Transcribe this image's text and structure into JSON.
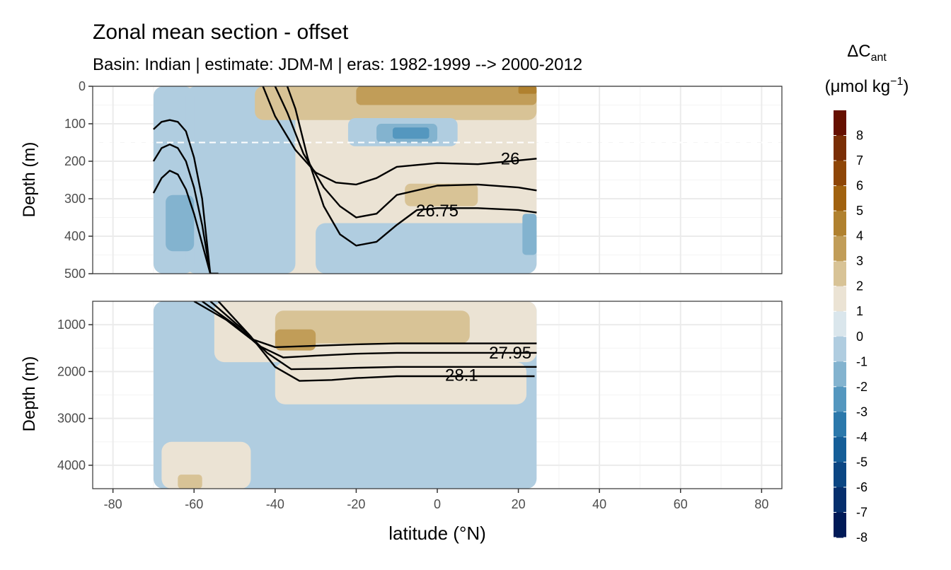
{
  "chart_data": {
    "type": "heatmap",
    "title": "Zonal mean section - offset",
    "subtitle": "Basin: Indian | estimate: JDM-M | eras: 1982-1999 --> 2000-2012",
    "xlabel": "latitude (°N)",
    "ylabel": "Depth (m)",
    "xlim": [
      -85,
      85
    ],
    "x_ticks": [
      "-80",
      "-60",
      "-40",
      "-20",
      "0",
      "20",
      "40",
      "60",
      "80"
    ],
    "x_tick_values": [
      -80,
      -60,
      -40,
      -20,
      0,
      20,
      40,
      60,
      80
    ],
    "data_extent_lat": [
      -70,
      24.5
    ],
    "grid": true,
    "legend_position": "right",
    "panels": [
      {
        "name": "upper",
        "ylim": [
          0,
          500
        ],
        "y_ticks": [
          "0",
          "100",
          "200",
          "300",
          "400",
          "500"
        ],
        "y_tick_values": [
          0,
          100,
          200,
          300,
          400,
          500
        ],
        "reference_depth": 150,
        "contour_labels": [
          {
            "text": "26",
            "lat": 18,
            "depth": 193
          },
          {
            "text": "26.75",
            "lat": 0,
            "depth": 332
          }
        ],
        "field": [
          {
            "class": 1,
            "lat": [
              -70,
              24.5
            ],
            "depth": [
              0,
              500
            ]
          },
          {
            "class": -1,
            "lat": [
              -70,
              -60
            ],
            "depth": [
              0,
              500
            ]
          },
          {
            "class": -1,
            "lat": [
              -62,
              -40
            ],
            "depth": [
              0,
              500
            ]
          },
          {
            "class": -1,
            "lat": [
              -30,
              24.5
            ],
            "depth": [
              365,
              500
            ]
          },
          {
            "class": -1,
            "lat": [
              -60,
              -35
            ],
            "depth": [
              0,
              500
            ]
          },
          {
            "class": 2,
            "lat": [
              -45,
              24.5
            ],
            "depth": [
              0,
              90
            ]
          },
          {
            "class": 3,
            "lat": [
              -20,
              24.5
            ],
            "depth": [
              0,
              50
            ]
          },
          {
            "class": 4,
            "lat": [
              20,
              24.5
            ],
            "depth": [
              0,
              20
            ]
          },
          {
            "class": -1,
            "lat": [
              -22,
              5
            ],
            "depth": [
              85,
              160
            ]
          },
          {
            "class": -2,
            "lat": [
              -15,
              0
            ],
            "depth": [
              100,
              150
            ]
          },
          {
            "class": -3,
            "lat": [
              -11,
              -2
            ],
            "depth": [
              110,
              140
            ]
          },
          {
            "class": 2,
            "lat": [
              -8,
              10
            ],
            "depth": [
              260,
              320
            ]
          },
          {
            "class": -2,
            "lat": [
              -67,
              -60
            ],
            "depth": [
              290,
              440
            ]
          },
          {
            "class": -2,
            "lat": [
              21,
              24.5
            ],
            "depth": [
              340,
              450
            ]
          }
        ],
        "contours": [
          {
            "name": "26",
            "lat": [
              -70,
              -68,
              -66,
              -64,
              -62,
              -60,
              -58,
              -56
            ],
            "depth": [
              115,
              95,
              90,
              95,
              120,
              190,
              300,
              500
            ],
            "lat2": [
              -43,
              -40,
              -35,
              -30,
              -25,
              -20,
              -15,
              -10,
              0,
              10,
              18,
              24.5
            ],
            "depth2": [
              0,
              80,
              170,
              230,
              257,
              262,
              245,
              215,
              205,
              208,
              200,
              193
            ]
          },
          {
            "name": "26.25",
            "lat": [
              -70,
              -68,
              -66,
              -64,
              -62,
              -60,
              -58,
              -56,
              -54
            ],
            "depth": [
              200,
              165,
              155,
              165,
              200,
              270,
              370,
              500,
              500
            ],
            "lat2": [
              -40,
              -37,
              -33,
              -28,
              -24,
              -20,
              -15,
              -10,
              0,
              10,
              20,
              24.5
            ],
            "depth2": [
              0,
              70,
              180,
              270,
              320,
              350,
              340,
              290,
              265,
              262,
              270,
              278
            ]
          },
          {
            "name": "26.75",
            "lat": [
              -70,
              -68,
              -66,
              -64,
              -62,
              -60,
              -58,
              -56,
              -54
            ],
            "depth": [
              285,
              245,
              225,
              235,
              275,
              340,
              420,
              500,
              500
            ],
            "lat2": [
              -37,
              -35,
              -32,
              -28,
              -24,
              -20,
              -15,
              -10,
              -5,
              0,
              10,
              20,
              24.5
            ],
            "depth2": [
              0,
              60,
              190,
              320,
              395,
              425,
              415,
              370,
              330,
              325,
              325,
              330,
              337
            ]
          }
        ]
      },
      {
        "name": "lower",
        "ylim": [
          500,
          4500
        ],
        "y_ticks": [
          "1000",
          "2000",
          "3000",
          "4000"
        ],
        "y_tick_values": [
          1000,
          2000,
          3000,
          4000
        ],
        "contour_labels": [
          {
            "text": "27.95",
            "lat": 18,
            "depth": 1600
          },
          {
            "text": "28.1",
            "lat": 6,
            "depth": 2080
          }
        ],
        "field": [
          {
            "class": -1,
            "lat": [
              -70,
              24.5
            ],
            "depth": [
              500,
              4500
            ]
          },
          {
            "class": 1,
            "lat": [
              -55,
              24.5
            ],
            "depth": [
              500,
              1800
            ]
          },
          {
            "class": 1,
            "lat": [
              -40,
              22
            ],
            "depth": [
              1800,
              2700
            ]
          },
          {
            "class": 1,
            "lat": [
              -68,
              -46
            ],
            "depth": [
              3500,
              4500
            ]
          },
          {
            "class": 2,
            "lat": [
              -40,
              8
            ],
            "depth": [
              700,
              1400
            ]
          },
          {
            "class": 3,
            "lat": [
              -40,
              -30
            ],
            "depth": [
              1100,
              1550
            ]
          },
          {
            "class": 2,
            "lat": [
              -64,
              -58
            ],
            "depth": [
              4200,
              4500
            ]
          }
        ],
        "contours": [
          {
            "name": "27.95a",
            "lat": [
              -60,
              -52,
              -46,
              -40,
              -30,
              -20,
              -10,
              0,
              10,
              20,
              24.5
            ],
            "depth": [
              500,
              900,
              1300,
              1480,
              1450,
              1420,
              1400,
              1400,
              1400,
              1400,
              1400
            ]
          },
          {
            "name": "27.95",
            "lat": [
              -58,
              -50,
              -44,
              -38,
              -30,
              -20,
              -10,
              0,
              10,
              20,
              24.5
            ],
            "depth": [
              500,
              1000,
              1450,
              1700,
              1660,
              1620,
              1600,
              1600,
              1600,
              1600,
              1600
            ]
          },
          {
            "name": "28.1a",
            "lat": [
              -56,
              -48,
              -42,
              -36,
              -28,
              -20,
              -10,
              0,
              10,
              20,
              24.5
            ],
            "depth": [
              500,
              1100,
              1600,
              1950,
              1940,
              1920,
              1900,
              1900,
              1900,
              1900,
              1900
            ]
          },
          {
            "name": "28.1",
            "lat": [
              -54,
              -46,
              -40,
              -34,
              -26,
              -20,
              -10,
              0,
              10,
              24
            ],
            "depth": [
              500,
              1250,
              1900,
              2200,
              2180,
              2140,
              2100,
              2100,
              2100,
              2100
            ]
          }
        ]
      }
    ]
  },
  "legend": {
    "title_main": "ΔC",
    "title_sub": "ant",
    "unit": "(μmol kg",
    "unit_sup": "−1",
    "unit_close": ")",
    "labels": [
      "8",
      "7",
      "6",
      "5",
      "4",
      "3",
      "2",
      "1",
      "0",
      "-1",
      "-2",
      "-3",
      "-4",
      "-5",
      "-6",
      "-7",
      "-8"
    ],
    "colors": [
      "#661000",
      "#7a2e05",
      "#8e4607",
      "#a1620f",
      "#b0812f",
      "#c19d58",
      "#d8c396",
      "#ebe3d4",
      "#dae6ec",
      "#b0cde0",
      "#83b3cf",
      "#5497bf",
      "#2b78ab",
      "#155e98",
      "#0b4683",
      "#062f6d",
      "#001a57"
    ],
    "class_values": [
      8,
      7,
      6,
      5,
      4,
      3,
      2,
      1,
      0,
      -1,
      -2,
      -3,
      -4,
      -5,
      -6,
      -7,
      -8
    ]
  }
}
